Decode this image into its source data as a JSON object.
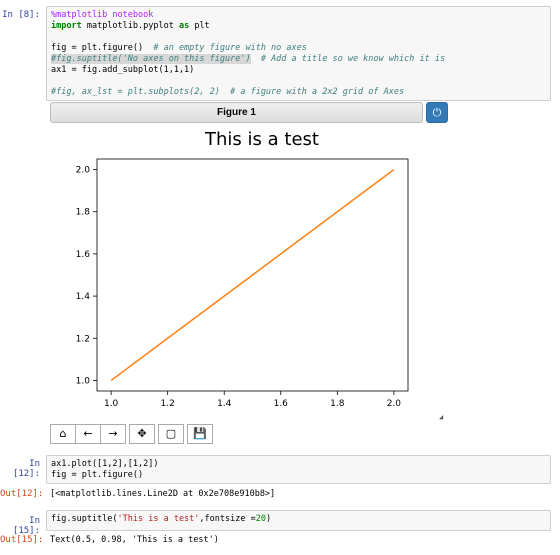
{
  "cells": [
    {
      "prompt": "In  [8]:",
      "lines": [
        [
          {
            "t": "%matplotlib notebook",
            "c": "mg"
          }
        ],
        [
          {
            "t": "import",
            "c": "kw"
          },
          {
            "t": " matplotlib.pyplot "
          },
          {
            "t": "as",
            "c": "kw"
          },
          {
            "t": " plt"
          }
        ],
        [],
        [
          {
            "t": "fig = plt.figure()  "
          },
          {
            "t": "# an empty figure with no axes",
            "c": "cm"
          }
        ],
        [
          {
            "t": "#fig.suptitle('No axes on this figure')",
            "c": "cm hl"
          },
          {
            "t": "  # Add a title so we know which it is",
            "c": "cm"
          }
        ],
        [
          {
            "t": "ax1 = fig.add_subplot(1,1,1)"
          }
        ],
        [],
        [
          {
            "t": "#fig, ax_lst = plt.subplots(2, 2)  # a figure with a 2x2 grid of Axes",
            "c": "cm"
          }
        ]
      ]
    },
    {
      "prompt": "In  [12]:",
      "lines": [
        [
          {
            "t": "ax1.plot([1,2],[1,2])"
          }
        ],
        [
          {
            "t": "fig = plt.figure()"
          }
        ]
      ],
      "out_prompt": "Out[12]:",
      "output": "[<matplotlib.lines.Line2D at 0x2e708e910b8>]"
    },
    {
      "prompt": "In  [15]:",
      "lines": [
        [
          {
            "t": "fig.suptitle("
          },
          {
            "t": "'This is a test'",
            "c": "st"
          },
          {
            "t": ",fontsize ="
          },
          {
            "t": "20",
            "c": "nm"
          },
          {
            "t": ")"
          }
        ]
      ],
      "out_prompt": "Out[15]:",
      "output": "Text(0.5, 0.98, 'This is a test')"
    }
  ],
  "figure": {
    "header_title": "Figure 1",
    "close_icon": "power-icon",
    "toolbar": [
      "home-icon",
      "back-arrow-icon",
      "forward-arrow-icon",
      "pan-move-icon",
      "zoom-rect-icon",
      "save-icon"
    ],
    "toolbar_glyphs": [
      "⌂",
      "←",
      "→",
      "✥",
      "▢",
      "💾"
    ]
  },
  "chart_data": {
    "type": "line",
    "title": "This is a test",
    "xlabel": "",
    "ylabel": "",
    "xlim": [
      0.95,
      2.05
    ],
    "ylim": [
      0.95,
      2.05
    ],
    "xticks": [
      "1.0",
      "1.2",
      "1.4",
      "1.6",
      "1.8",
      "2.0"
    ],
    "yticks": [
      "1.0",
      "1.2",
      "1.4",
      "1.6",
      "1.8",
      "2.0"
    ],
    "series": [
      {
        "x": [
          1,
          2
        ],
        "y": [
          1,
          2
        ],
        "color": "#ff7f0e"
      }
    ],
    "grid": false
  }
}
